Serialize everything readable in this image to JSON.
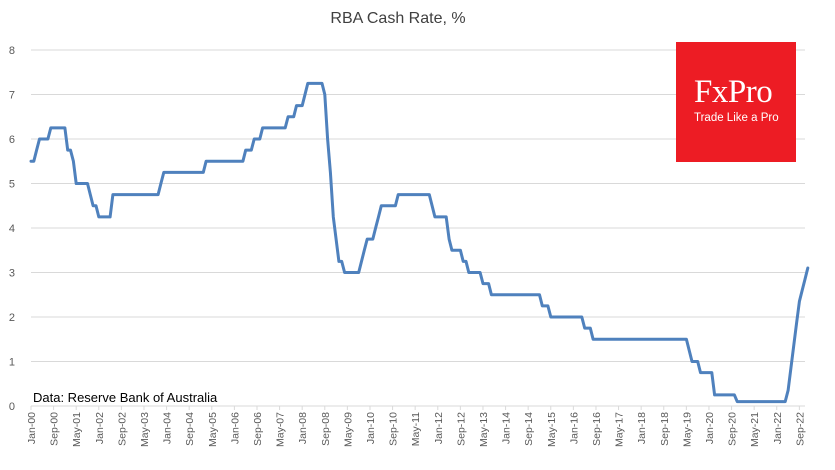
{
  "chart_data": {
    "type": "line",
    "title": "RBA Cash Rate, %",
    "xlabel": "",
    "ylabel": "",
    "ylim": [
      0,
      8
    ],
    "yticks": [
      0,
      1,
      2,
      3,
      4,
      5,
      6,
      7,
      8
    ],
    "grid": "horizontal",
    "source_note": "Data: Reserve Bank of Australia",
    "xlim": [
      "2000-01",
      "2022-11"
    ],
    "xtick_labels": [
      "Jan-00",
      "Sep-00",
      "May-01",
      "Jan-02",
      "Sep-02",
      "May-03",
      "Jan-04",
      "Sep-04",
      "May-05",
      "Jan-06",
      "Sep-06",
      "May-07",
      "Jan-08",
      "Sep-08",
      "May-09",
      "Jan-10",
      "Sep-10",
      "May-11",
      "Jan-12",
      "Sep-12",
      "May-13",
      "Jan-14",
      "Sep-14",
      "May-15",
      "Jan-16",
      "Sep-16",
      "May-17",
      "Jan-18",
      "Sep-18",
      "May-19",
      "Jan-20",
      "Sep-20",
      "May-21",
      "Jan-22",
      "Sep-22"
    ],
    "series": [
      {
        "name": "RBA Cash Rate",
        "color": "#4f81bd",
        "points": [
          [
            "2000-01",
            5.5
          ],
          [
            "2000-02",
            5.5
          ],
          [
            "2000-03",
            5.75
          ],
          [
            "2000-04",
            6.0
          ],
          [
            "2000-07",
            6.0
          ],
          [
            "2000-08",
            6.25
          ],
          [
            "2001-01",
            6.25
          ],
          [
            "2001-02",
            5.75
          ],
          [
            "2001-03",
            5.75
          ],
          [
            "2001-04",
            5.5
          ],
          [
            "2001-05",
            5.0
          ],
          [
            "2001-09",
            5.0
          ],
          [
            "2001-10",
            4.75
          ],
          [
            "2001-11",
            4.5
          ],
          [
            "2001-12",
            4.5
          ],
          [
            "2002-01",
            4.25
          ],
          [
            "2002-05",
            4.25
          ],
          [
            "2002-06",
            4.75
          ],
          [
            "2003-10",
            4.75
          ],
          [
            "2003-11",
            5.0
          ],
          [
            "2003-12",
            5.25
          ],
          [
            "2005-02",
            5.25
          ],
          [
            "2005-03",
            5.5
          ],
          [
            "2006-04",
            5.5
          ],
          [
            "2006-05",
            5.75
          ],
          [
            "2006-07",
            5.75
          ],
          [
            "2006-08",
            6.0
          ],
          [
            "2006-10",
            6.0
          ],
          [
            "2006-11",
            6.25
          ],
          [
            "2007-07",
            6.25
          ],
          [
            "2007-08",
            6.5
          ],
          [
            "2007-10",
            6.5
          ],
          [
            "2007-11",
            6.75
          ],
          [
            "2008-01",
            6.75
          ],
          [
            "2008-02",
            7.0
          ],
          [
            "2008-03",
            7.25
          ],
          [
            "2008-08",
            7.25
          ],
          [
            "2008-09",
            7.0
          ],
          [
            "2008-10",
            6.0
          ],
          [
            "2008-11",
            5.25
          ],
          [
            "2008-12",
            4.25
          ],
          [
            "2009-02",
            3.25
          ],
          [
            "2009-03",
            3.25
          ],
          [
            "2009-04",
            3.0
          ],
          [
            "2009-09",
            3.0
          ],
          [
            "2009-10",
            3.25
          ],
          [
            "2009-11",
            3.5
          ],
          [
            "2009-12",
            3.75
          ],
          [
            "2010-02",
            3.75
          ],
          [
            "2010-03",
            4.0
          ],
          [
            "2010-04",
            4.25
          ],
          [
            "2010-05",
            4.5
          ],
          [
            "2010-10",
            4.5
          ],
          [
            "2010-11",
            4.75
          ],
          [
            "2011-10",
            4.75
          ],
          [
            "2011-11",
            4.5
          ],
          [
            "2011-12",
            4.25
          ],
          [
            "2012-04",
            4.25
          ],
          [
            "2012-05",
            3.75
          ],
          [
            "2012-06",
            3.5
          ],
          [
            "2012-09",
            3.5
          ],
          [
            "2012-10",
            3.25
          ],
          [
            "2012-11",
            3.25
          ],
          [
            "2012-12",
            3.0
          ],
          [
            "2013-04",
            3.0
          ],
          [
            "2013-05",
            2.75
          ],
          [
            "2013-07",
            2.75
          ],
          [
            "2013-08",
            2.5
          ],
          [
            "2015-01",
            2.5
          ],
          [
            "2015-02",
            2.25
          ],
          [
            "2015-04",
            2.25
          ],
          [
            "2015-05",
            2.0
          ],
          [
            "2016-04",
            2.0
          ],
          [
            "2016-05",
            1.75
          ],
          [
            "2016-07",
            1.75
          ],
          [
            "2016-08",
            1.5
          ],
          [
            "2019-05",
            1.5
          ],
          [
            "2019-06",
            1.25
          ],
          [
            "2019-07",
            1.0
          ],
          [
            "2019-09",
            1.0
          ],
          [
            "2019-10",
            0.75
          ],
          [
            "2020-02",
            0.75
          ],
          [
            "2020-03",
            0.25
          ],
          [
            "2020-10",
            0.25
          ],
          [
            "2020-11",
            0.1
          ],
          [
            "2022-04",
            0.1
          ],
          [
            "2022-05",
            0.35
          ],
          [
            "2022-06",
            0.85
          ],
          [
            "2022-07",
            1.35
          ],
          [
            "2022-08",
            1.85
          ],
          [
            "2022-09",
            2.35
          ],
          [
            "2022-10",
            2.6
          ],
          [
            "2022-11",
            2.85
          ],
          [
            "2022-12",
            3.1
          ]
        ]
      }
    ]
  },
  "logo": {
    "name": "FxPro",
    "tagline": "Trade Like a Pro",
    "background": "#ed1c24",
    "text_color": "#ffffff"
  }
}
